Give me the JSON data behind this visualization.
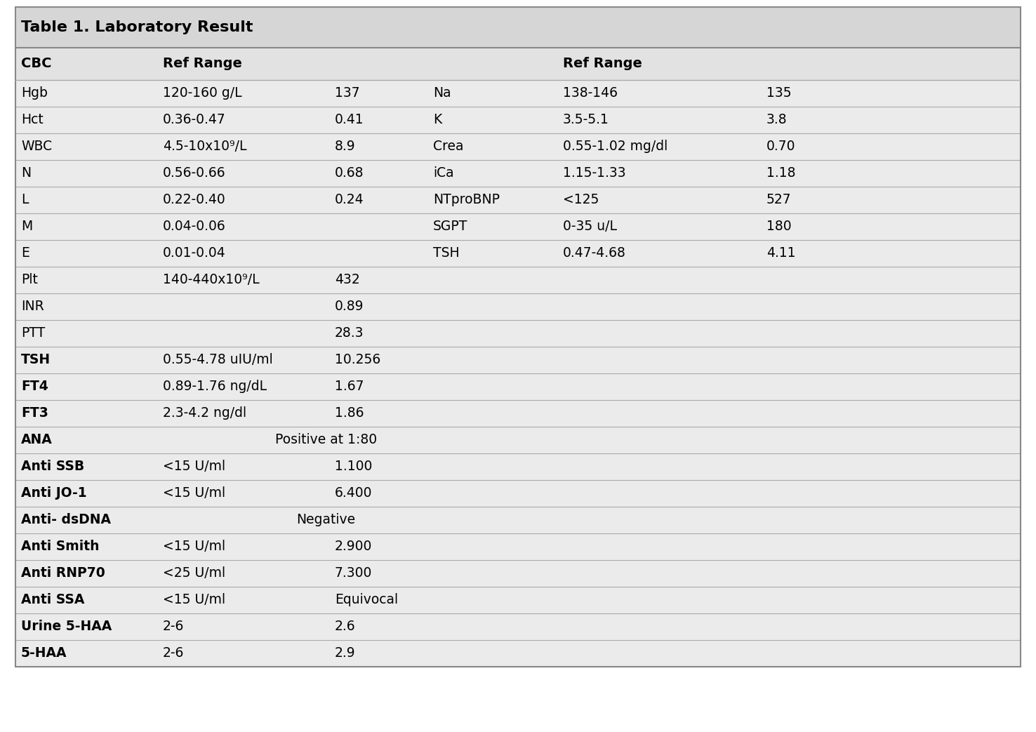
{
  "title": "Table 1. Laboratory Result",
  "title_bg": "#d8d8d8",
  "header_bg": "#e0e0e0",
  "row_bg": "#ebebeb",
  "line_color": "#aaaaaa",
  "rows": [
    {
      "left_name": "Hgb",
      "left_bold": false,
      "left_ref": "120-160 g/L",
      "left_val": "137",
      "right_name": "Na",
      "right_ref": "138-146",
      "right_val": "135"
    },
    {
      "left_name": "Hct",
      "left_bold": false,
      "left_ref": "0.36-0.47",
      "left_val": "0.41",
      "right_name": "K",
      "right_ref": "3.5-5.1",
      "right_val": "3.8"
    },
    {
      "left_name": "WBC",
      "left_bold": false,
      "left_ref": "4.5-10x10⁹/L",
      "left_val": "8.9",
      "right_name": "Crea",
      "right_ref": "0.55-1.02 mg/dl",
      "right_val": "0.70"
    },
    {
      "left_name": "N",
      "left_bold": false,
      "left_ref": "0.56-0.66",
      "left_val": "0.68",
      "right_name": "iCa",
      "right_ref": "1.15-1.33",
      "right_val": "1.18"
    },
    {
      "left_name": "L",
      "left_bold": false,
      "left_ref": "0.22-0.40",
      "left_val": "0.24",
      "right_name": "NTproBNP",
      "right_ref": "<125",
      "right_val": "527"
    },
    {
      "left_name": "M",
      "left_bold": false,
      "left_ref": "0.04-0.06",
      "left_val": "",
      "right_name": "SGPT",
      "right_ref": "0-35 u/L",
      "right_val": "180"
    },
    {
      "left_name": "E",
      "left_bold": false,
      "left_ref": "0.01-0.04",
      "left_val": "",
      "right_name": "TSH",
      "right_ref": "0.47-4.68",
      "right_val": "4.11"
    },
    {
      "left_name": "Plt",
      "left_bold": false,
      "left_ref": "140-440x10⁹/L",
      "left_val": "432",
      "right_name": "",
      "right_ref": "",
      "right_val": ""
    },
    {
      "left_name": "INR",
      "left_bold": false,
      "left_ref": "",
      "left_val": "0.89",
      "right_name": "",
      "right_ref": "",
      "right_val": ""
    },
    {
      "left_name": "PTT",
      "left_bold": false,
      "left_ref": "",
      "left_val": "28.3",
      "right_name": "",
      "right_ref": "",
      "right_val": ""
    },
    {
      "left_name": "TSH",
      "left_bold": true,
      "left_ref": "0.55-4.78 uIU/ml",
      "left_val": "10.256",
      "right_name": "",
      "right_ref": "",
      "right_val": ""
    },
    {
      "left_name": "FT4",
      "left_bold": true,
      "left_ref": "0.89-1.76 ng/dL",
      "left_val": "1.67",
      "right_name": "",
      "right_ref": "",
      "right_val": ""
    },
    {
      "left_name": "FT3",
      "left_bold": true,
      "left_ref": "2.3-4.2 ng/dl",
      "left_val": "1.86",
      "right_name": "",
      "right_ref": "",
      "right_val": ""
    },
    {
      "left_name": "ANA",
      "left_bold": true,
      "left_ref": "",
      "left_val": "Positive at 1:80",
      "right_name": "",
      "right_ref": "",
      "right_val": "",
      "span": true
    },
    {
      "left_name": "Anti SSB",
      "left_bold": true,
      "left_ref": "<15 U/ml",
      "left_val": "1.100",
      "right_name": "",
      "right_ref": "",
      "right_val": ""
    },
    {
      "left_name": "Anti JO-1",
      "left_bold": true,
      "left_ref": "<15 U/ml",
      "left_val": "6.400",
      "right_name": "",
      "right_ref": "",
      "right_val": ""
    },
    {
      "left_name": "Anti- dsDNA",
      "left_bold": true,
      "left_ref": "",
      "left_val": "Negative",
      "right_name": "",
      "right_ref": "",
      "right_val": "",
      "span": true
    },
    {
      "left_name": "Anti Smith",
      "left_bold": true,
      "left_ref": "<15 U/ml",
      "left_val": "2.900",
      "right_name": "",
      "right_ref": "",
      "right_val": ""
    },
    {
      "left_name": "Anti RNP70",
      "left_bold": true,
      "left_ref": "<25 U/ml",
      "left_val": "7.300",
      "right_name": "",
      "right_ref": "",
      "right_val": ""
    },
    {
      "left_name": "Anti SSA",
      "left_bold": true,
      "left_ref": "<15 U/ml",
      "left_val": "Equivocal",
      "right_name": "",
      "right_ref": "",
      "right_val": ""
    },
    {
      "left_name": "Urine 5-HAA",
      "left_bold": true,
      "left_ref": "2-6",
      "left_val": "2.6",
      "right_name": "",
      "right_ref": "",
      "right_val": ""
    },
    {
      "left_name": "5-HAA",
      "left_bold": true,
      "left_ref": "2-6",
      "left_val": "2.9",
      "right_name": "",
      "right_ref": "",
      "right_val": ""
    }
  ],
  "title_fontsize": 16,
  "body_fontsize": 13.5,
  "header_fontsize": 14
}
